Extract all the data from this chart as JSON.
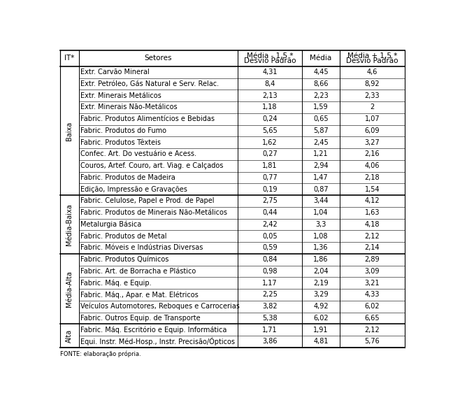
{
  "col_headers": [
    "IT*",
    "Setores",
    "Média - 1,5 *\nDesvio Padrão",
    "Média",
    "Média + 1,5 *\nDesvio Padrão"
  ],
  "groups": [
    {
      "label": "Baixa",
      "rows": [
        [
          "Extr. Carvão Mineral",
          "4,31",
          "4,45",
          "4,6"
        ],
        [
          "Extr. Petróleo, Gás Natural e Serv. Relac.",
          "8,4",
          "8,66",
          "8,92"
        ],
        [
          "Extr. Minerais Metálicos",
          "2,13",
          "2,23",
          "2,33"
        ],
        [
          "Extr. Minerais Não-Metálicos",
          "1,18",
          "1,59",
          "2"
        ],
        [
          "Fabric. Produtos Alimentícios e Bebidas",
          "0,24",
          "0,65",
          "1,07"
        ],
        [
          "Fabric. Produtos do Fumo",
          "5,65",
          "5,87",
          "6,09"
        ],
        [
          "Fabric. Produtos Têxteis",
          "1,62",
          "2,45",
          "3,27"
        ],
        [
          "Confec. Art. Do vestuário e Acess.",
          "0,27",
          "1,21",
          "2,16"
        ],
        [
          "Couros, Artef. Couro, art. Viag. e Calçados",
          "1,81",
          "2,94",
          "4,06"
        ],
        [
          "Fabric. Produtos de Madeira",
          "0,77",
          "1,47",
          "2,18"
        ],
        [
          "Edição, Impressão e Gravações",
          "0,19",
          "0,87",
          "1,54"
        ]
      ]
    },
    {
      "label": "Média-Baixa",
      "rows": [
        [
          "Fabric. Celulose, Papel e Prod. de Papel",
          "2,75",
          "3,44",
          "4,12"
        ],
        [
          "Fabric. Produtos de Minerais Não-Metálicos",
          "0,44",
          "1,04",
          "1,63"
        ],
        [
          "Metalurgia Básica",
          "2,42",
          "3,3",
          "4,18"
        ],
        [
          "Fabric. Produtos de Metal",
          "0,05",
          "1,08",
          "2,12"
        ],
        [
          "Fabric. Móveis e Indústrias Diversas",
          "0,59",
          "1,36",
          "2,14"
        ]
      ]
    },
    {
      "label": "Média-Alta",
      "rows": [
        [
          "Fabric. Produtos Químicos",
          "0,84",
          "1,86",
          "2,89"
        ],
        [
          "Fabric. Art. de Borracha e Plástico",
          "0,98",
          "2,04",
          "3,09"
        ],
        [
          "Fabric. Máq. e Equip.",
          "1,17",
          "2,19",
          "3,21"
        ],
        [
          "Fabric. Máq., Apar. e Mat. Elétricos",
          "2,25",
          "3,29",
          "4,33"
        ],
        [
          "Veículos Automotores, Reboques e Carrocerias",
          "3,82",
          "4,92",
          "6,02"
        ],
        [
          "Fabric. Outros Equip. de Transporte",
          "5,38",
          "6,02",
          "6,65"
        ]
      ]
    },
    {
      "label": "Alta",
      "rows": [
        [
          "Fabric. Máq. Escritório e Equip. Informática",
          "1,71",
          "1,91",
          "2,12"
        ],
        [
          "Equi. Instr. Méd-Hosp., Instr. Precisão/Ópticos",
          "3,86",
          "4,81",
          "5,76"
        ]
      ]
    }
  ],
  "font_size": 7.0,
  "header_font_size": 7.5,
  "footnote": "FONTE: elaboração própria."
}
